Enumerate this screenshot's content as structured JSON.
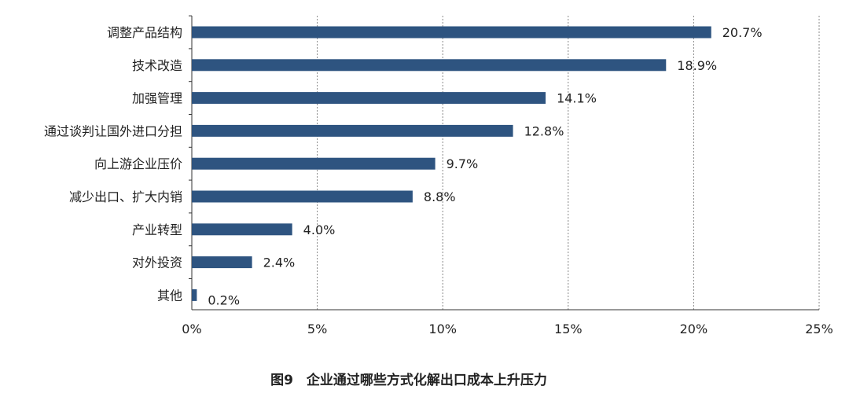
{
  "chart_data": {
    "type": "bar",
    "orientation": "horizontal",
    "categories": [
      "调整产品结构",
      "技术改造",
      "加强管理",
      "通过谈判让国外进口分担",
      "向上游企业压价",
      "减少出口、扩大内销",
      "产业转型",
      "对外投资",
      "其他"
    ],
    "values": [
      20.7,
      18.9,
      14.1,
      12.8,
      9.7,
      8.8,
      4.0,
      2.4,
      0.2
    ],
    "value_labels": [
      "20.7%",
      "18.9%",
      "14.1%",
      "12.8%",
      "9.7%",
      "8.8%",
      "4.0%",
      "2.4%",
      "0.2%"
    ],
    "xlim": [
      0,
      25
    ],
    "xticks": [
      0,
      5,
      10,
      15,
      20,
      25
    ],
    "xtick_labels": [
      "0%",
      "5%",
      "10%",
      "15%",
      "20%",
      "25%"
    ],
    "grid": "vertical-dashed",
    "title": "",
    "xlabel": "",
    "ylabel": "",
    "caption": "图9　企业通过哪些方式化解出口成本上升压力"
  },
  "colors": {
    "bar": "#2e5480",
    "grid": "#888888",
    "axis": "#333333",
    "text": "#222222"
  }
}
